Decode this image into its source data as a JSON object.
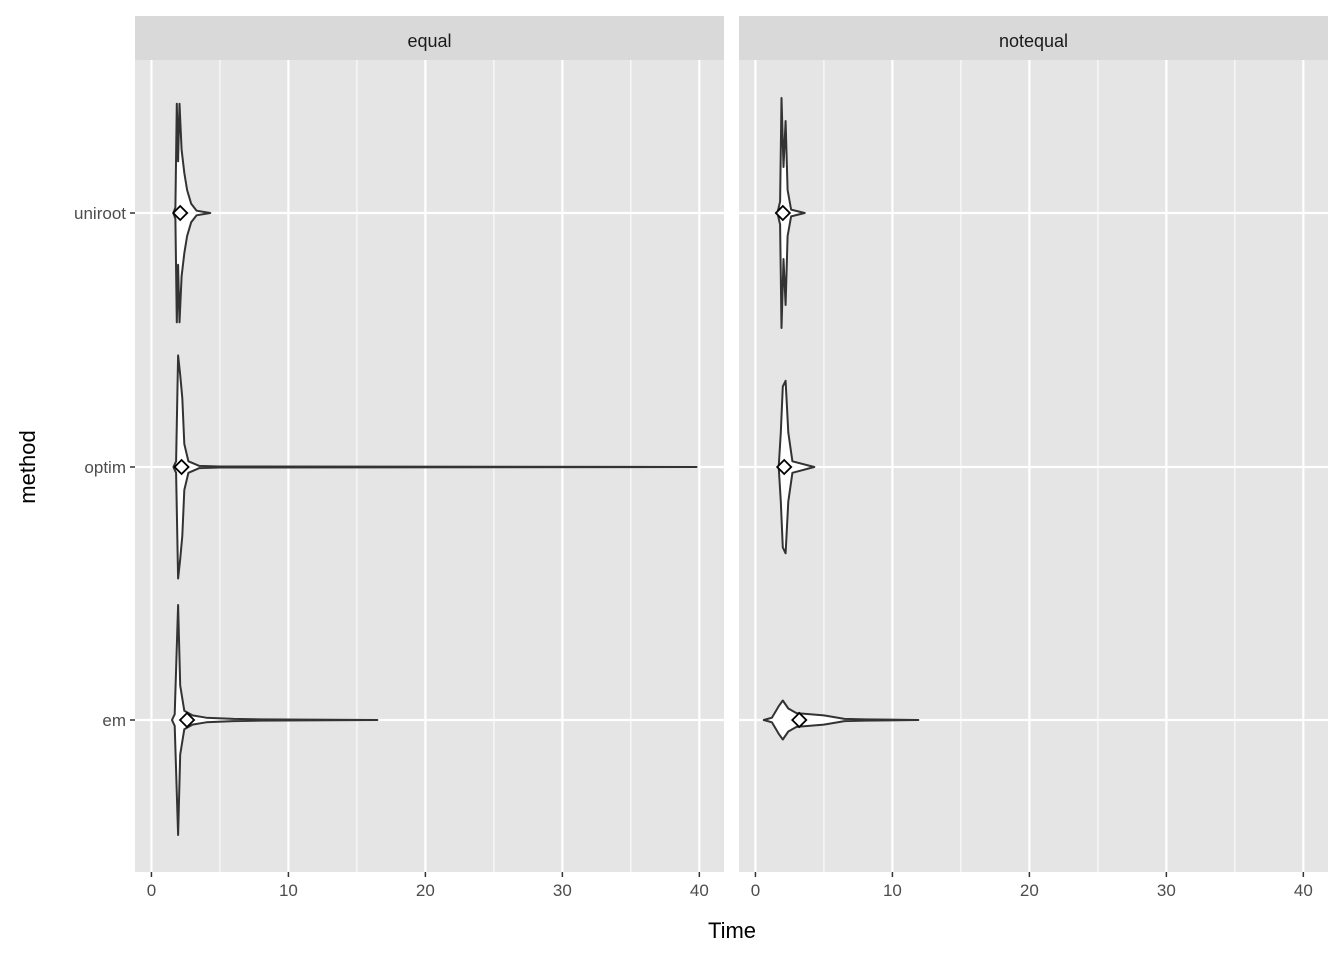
{
  "chart_data": {
    "type": "violin",
    "xlabel": "Time",
    "ylabel": "method",
    "xlim": [
      -1.2,
      41.8
    ],
    "x_ticks": [
      0,
      10,
      20,
      30,
      40
    ],
    "categories": [
      "em",
      "optim",
      "uniroot"
    ],
    "grid": true,
    "mean_marker": "diamond",
    "panel_background": "#e5e5e5",
    "strip_background": "#d9d9d9",
    "violin_fill": "#ffffff",
    "violin_stroke": "#333333",
    "facets": [
      {
        "label": "equal",
        "violins": [
          {
            "method": "uniroot",
            "mean": 2.1,
            "min": 1.6,
            "max": 4.3,
            "density": [
              [
                1.6,
                0
              ],
              [
                1.75,
                0.05
              ],
              [
                1.85,
                0.95
              ],
              [
                1.95,
                0.45
              ],
              [
                2.05,
                0.95
              ],
              [
                2.2,
                0.55
              ],
              [
                2.4,
                0.35
              ],
              [
                2.6,
                0.2
              ],
              [
                2.9,
                0.08
              ],
              [
                3.3,
                0.02
              ],
              [
                4.3,
                0
              ]
            ]
          },
          {
            "method": "optim",
            "mean": 2.2,
            "min": 1.6,
            "max": 39.8,
            "density": [
              [
                1.6,
                0
              ],
              [
                1.8,
                0.05
              ],
              [
                1.95,
                0.97
              ],
              [
                2.1,
                0.8
              ],
              [
                2.25,
                0.6
              ],
              [
                2.4,
                0.2
              ],
              [
                2.7,
                0.05
              ],
              [
                3.5,
                0.01
              ],
              [
                5,
                0.004
              ],
              [
                39.8,
                0
              ]
            ]
          },
          {
            "method": "em",
            "mean": 2.6,
            "min": 1.5,
            "max": 16.5,
            "density": [
              [
                1.5,
                0
              ],
              [
                1.7,
                0.05
              ],
              [
                1.95,
                1.0
              ],
              [
                2.1,
                0.3
              ],
              [
                2.4,
                0.08
              ],
              [
                3,
                0.04
              ],
              [
                4,
                0.02
              ],
              [
                6,
                0.01
              ],
              [
                8,
                0.005
              ],
              [
                16.5,
                0
              ]
            ]
          }
        ]
      },
      {
        "label": "notequal",
        "violins": [
          {
            "method": "uniroot",
            "mean": 2.0,
            "min": 1.6,
            "max": 3.6,
            "density": [
              [
                1.6,
                0
              ],
              [
                1.8,
                0.1
              ],
              [
                1.9,
                1.0
              ],
              [
                2.05,
                0.4
              ],
              [
                2.2,
                0.8
              ],
              [
                2.35,
                0.2
              ],
              [
                2.6,
                0.03
              ],
              [
                3.6,
                0
              ]
            ]
          },
          {
            "method": "optim",
            "mean": 2.1,
            "min": 1.7,
            "max": 4.3,
            "density": [
              [
                1.7,
                0
              ],
              [
                1.85,
                0.3
              ],
              [
                2.0,
                0.7
              ],
              [
                2.2,
                0.75
              ],
              [
                2.4,
                0.3
              ],
              [
                2.7,
                0.05
              ],
              [
                4.3,
                0
              ]
            ]
          },
          {
            "method": "em",
            "mean": 3.2,
            "min": 0.6,
            "max": 11.9,
            "density": [
              [
                0.6,
                0
              ],
              [
                1.2,
                0.02
              ],
              [
                1.7,
                0.12
              ],
              [
                2.0,
                0.17
              ],
              [
                2.4,
                0.1
              ],
              [
                3,
                0.06
              ],
              [
                4,
                0.05
              ],
              [
                5,
                0.04
              ],
              [
                6.5,
                0.01
              ],
              [
                8,
                0.005
              ],
              [
                11.9,
                0
              ]
            ]
          }
        ]
      }
    ]
  }
}
